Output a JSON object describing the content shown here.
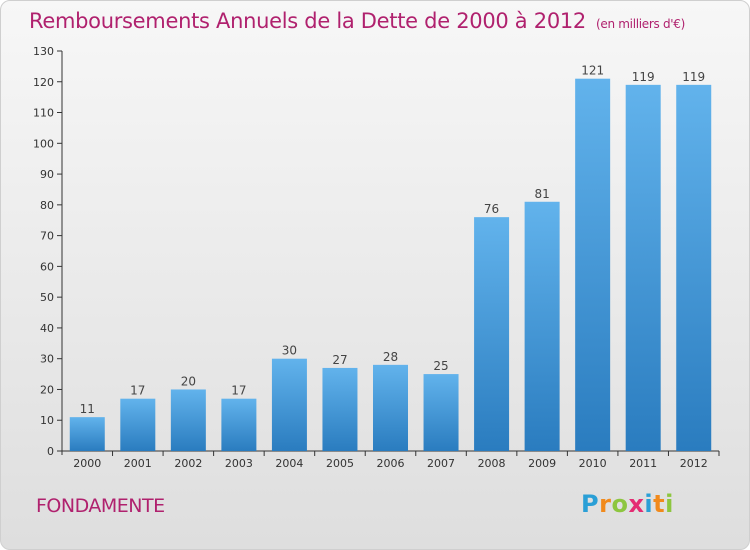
{
  "header": {
    "title": "Remboursements Annuels de la Dette de 2000 à 2012",
    "unit": "(en milliers d'€)"
  },
  "footer": {
    "commune": "FONDAMENTE",
    "logo_text": "Proxiti",
    "logo_letters": [
      "P",
      "r",
      "o",
      "x",
      "i",
      "t",
      "i"
    ],
    "logo_colors": [
      "#2a9fd6",
      "#f18a1c",
      "#8dc63f",
      "#e42c73",
      "#2a9fd6",
      "#f18a1c",
      "#8dc63f"
    ]
  },
  "colors": {
    "bar_light": "#62b3ec",
    "bar_dark": "#2a7cbf",
    "title": "#b0216e"
  },
  "chart_data": {
    "type": "bar",
    "title": "Remboursements Annuels de la Dette de 2000 à 2012",
    "subtitle": "(en milliers d'€)",
    "categories": [
      "2000",
      "2001",
      "2002",
      "2003",
      "2004",
      "2005",
      "2006",
      "2007",
      "2008",
      "2009",
      "2010",
      "2011",
      "2012"
    ],
    "values": [
      11,
      17,
      20,
      17,
      30,
      27,
      28,
      25,
      76,
      81,
      121,
      119,
      119
    ],
    "ylim": [
      0,
      130
    ],
    "yticks": [
      0,
      10,
      20,
      30,
      40,
      50,
      60,
      70,
      80,
      90,
      100,
      110,
      120,
      130
    ],
    "grid": false,
    "data_labels": true
  }
}
